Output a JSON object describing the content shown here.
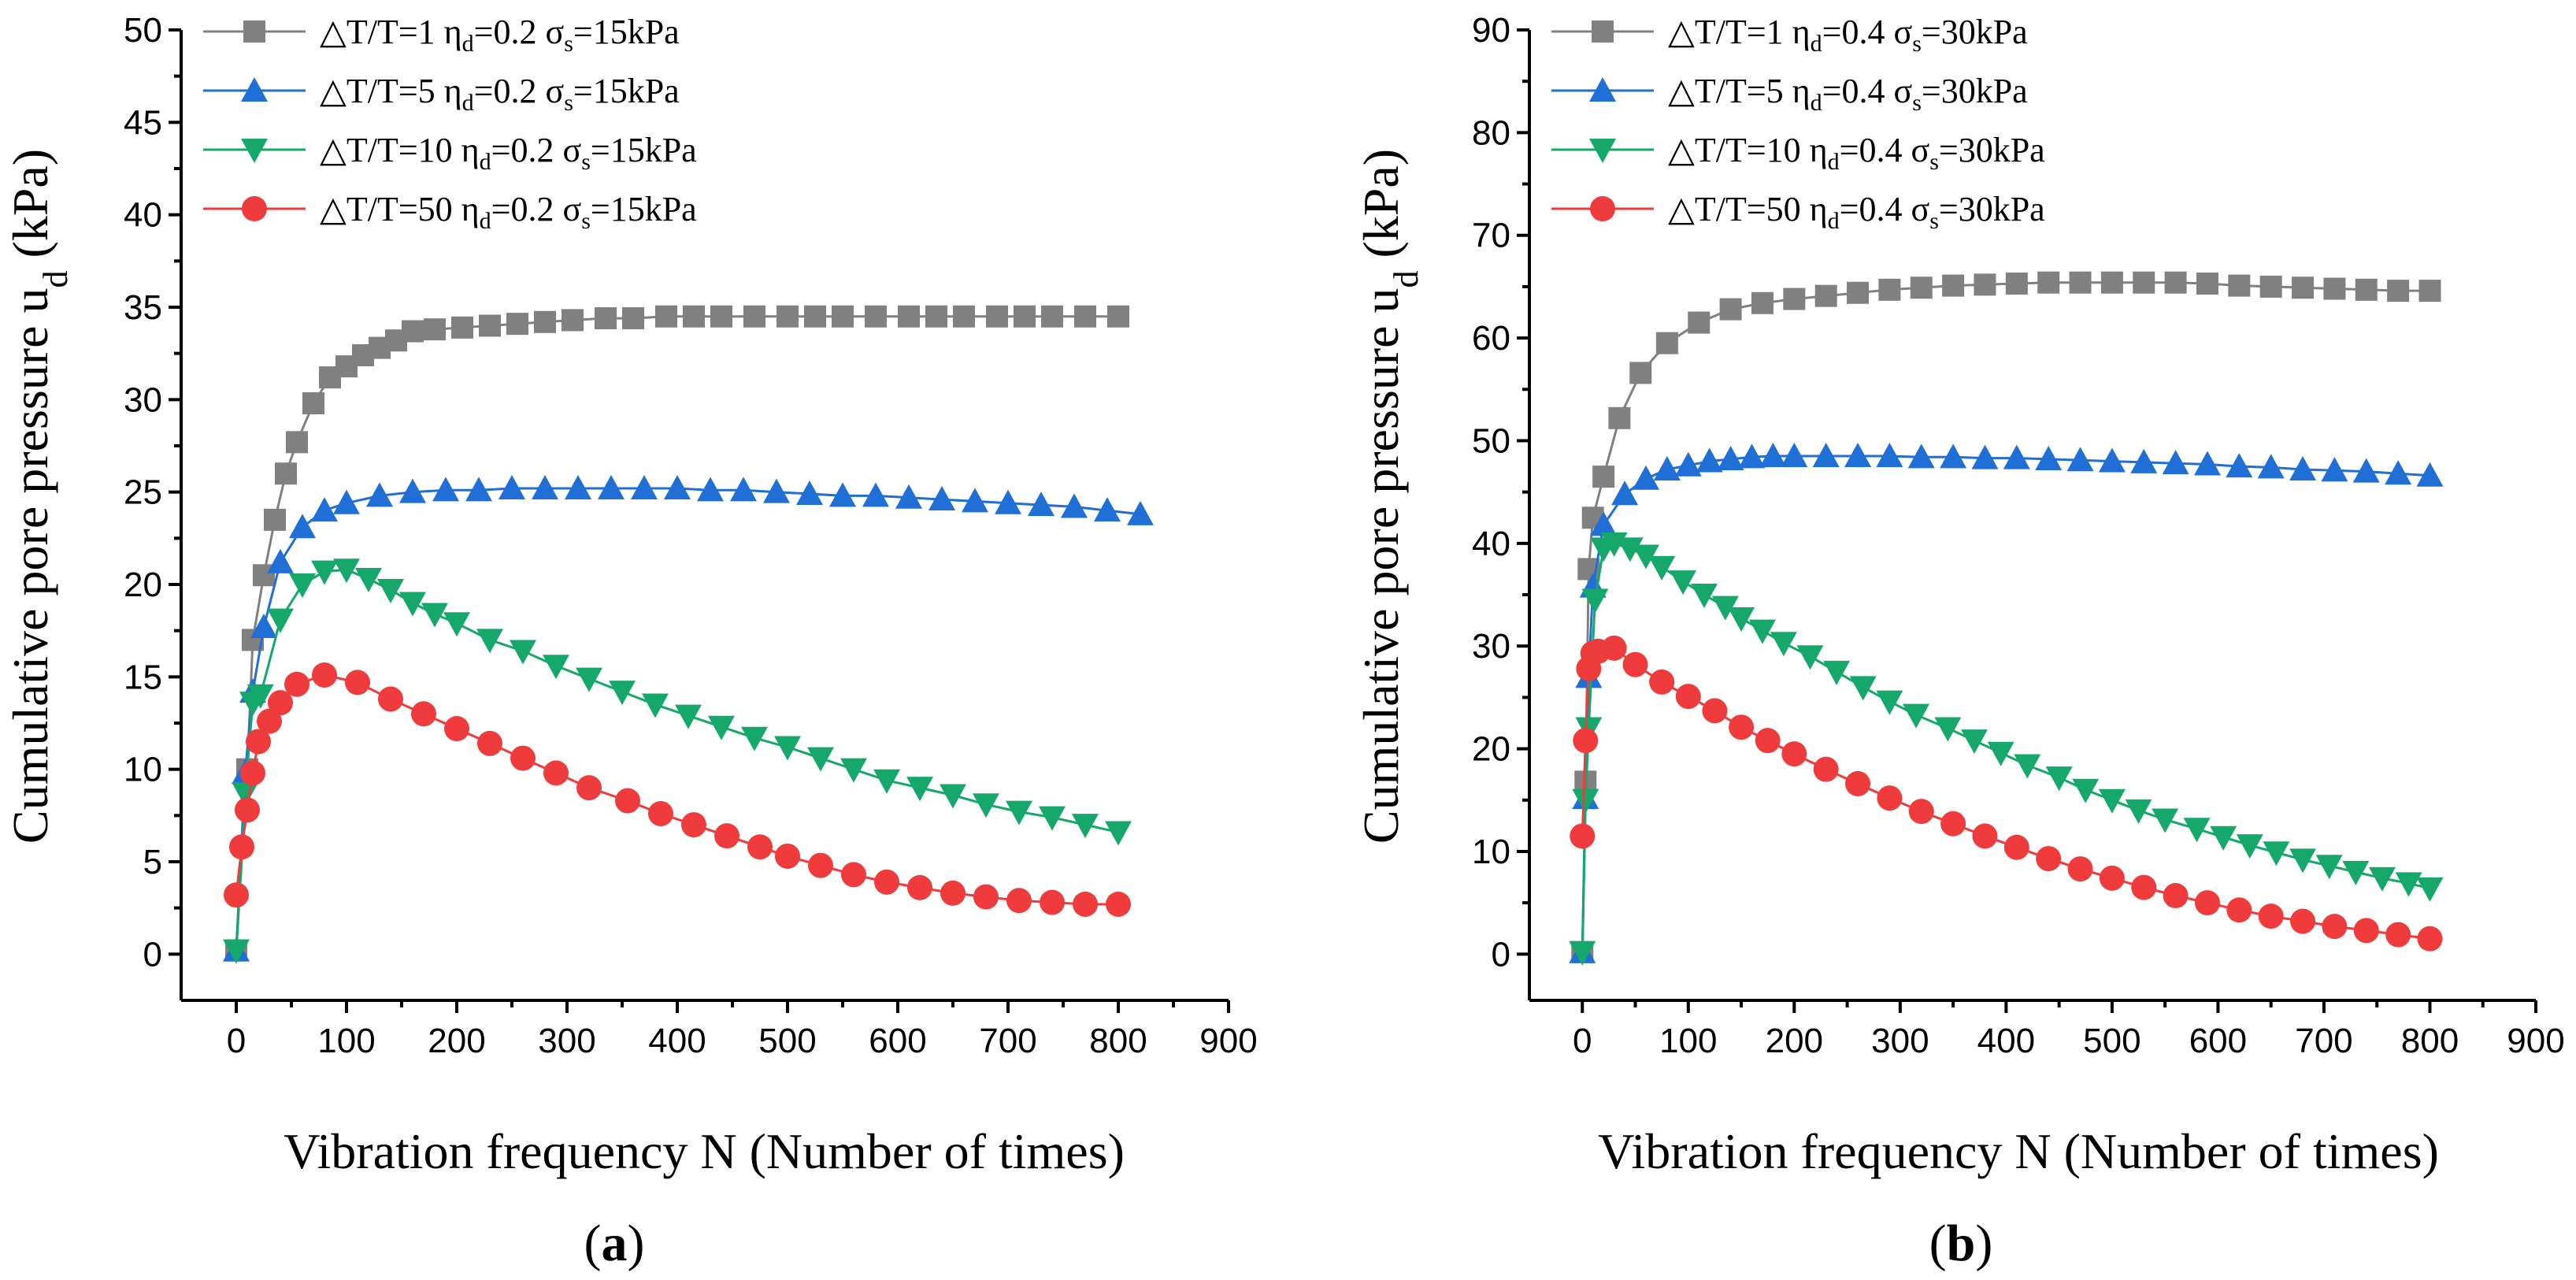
{
  "chart_data": [
    {
      "type": "line",
      "panel_label": "a",
      "xlabel": "Vibration frequency N (Number of times)",
      "ylabel": "Cumulative pore pressure u",
      "ylabel_subscript": "d",
      "ylabel_unit": " (kPa)",
      "xlim": [
        -50,
        900
      ],
      "ylim": [
        -2.5,
        50
      ],
      "xticks": [
        0,
        100,
        200,
        300,
        400,
        500,
        600,
        700,
        800,
        900
      ],
      "yticks": [
        0,
        5,
        10,
        15,
        20,
        25,
        30,
        35,
        40,
        45,
        50
      ],
      "legend_position": "top-left",
      "series": [
        {
          "name": "△T/T=1 η",
          "name_parts": {
            "lead": "△T/T=1 η",
            "sub1": "d",
            "mid": "=0.2 σ",
            "sub2": "s",
            "tail": "=15kPa"
          },
          "color": "#808080",
          "marker": "square",
          "x": [
            0,
            10,
            15,
            25,
            35,
            45,
            55,
            70,
            85,
            100,
            115,
            130,
            145,
            160,
            180,
            205,
            230,
            255,
            280,
            305,
            335,
            360,
            390,
            415,
            440,
            470,
            500,
            525,
            550,
            580,
            610,
            635,
            660,
            690,
            715,
            740,
            770,
            800
          ],
          "y": [
            0.2,
            10,
            17,
            20.5,
            23.5,
            26,
            27.7,
            29.8,
            31.2,
            31.8,
            32.4,
            32.8,
            33.2,
            33.7,
            33.8,
            33.9,
            34.0,
            34.1,
            34.2,
            34.3,
            34.4,
            34.4,
            34.5,
            34.5,
            34.5,
            34.5,
            34.5,
            34.5,
            34.5,
            34.5,
            34.5,
            34.5,
            34.5,
            34.5,
            34.5,
            34.5,
            34.5,
            34.5
          ]
        },
        {
          "name": "△T/T=5 η",
          "name_parts": {
            "lead": "△T/T=5 η",
            "sub1": "d",
            "mid": "=0.2 σ",
            "sub2": "s",
            "tail": "=15kPa"
          },
          "color": "#1f6fd6",
          "marker": "triangle-up",
          "x": [
            0,
            8,
            15,
            25,
            40,
            60,
            80,
            100,
            130,
            160,
            190,
            220,
            250,
            280,
            310,
            340,
            370,
            400,
            430,
            460,
            490,
            520,
            550,
            580,
            610,
            640,
            670,
            700,
            730,
            760,
            790,
            820
          ],
          "y": [
            0.2,
            9.8,
            14.2,
            17.7,
            21.2,
            23.1,
            24.0,
            24.4,
            24.8,
            25.0,
            25.1,
            25.1,
            25.2,
            25.2,
            25.2,
            25.2,
            25.2,
            25.2,
            25.1,
            25.1,
            25.0,
            24.9,
            24.8,
            24.8,
            24.7,
            24.6,
            24.5,
            24.4,
            24.3,
            24.2,
            24.0,
            23.8
          ]
        },
        {
          "name": "△T/T=10 η",
          "name_parts": {
            "lead": "△T/T=10 η",
            "sub1": "d",
            "mid": "=0.2 σ",
            "sub2": "s",
            "tail": "=15kPa"
          },
          "color": "#16a86b",
          "marker": "triangle-down",
          "x": [
            0,
            8,
            15,
            22,
            40,
            60,
            80,
            100,
            120,
            140,
            160,
            180,
            200,
            230,
            260,
            290,
            320,
            350,
            380,
            410,
            440,
            470,
            500,
            530,
            560,
            590,
            620,
            650,
            680,
            710,
            740,
            770,
            800
          ],
          "y": [
            0.2,
            8.7,
            13.6,
            14.0,
            18.1,
            20.0,
            20.7,
            20.8,
            20.3,
            19.7,
            19.0,
            18.4,
            17.9,
            17.0,
            16.4,
            15.6,
            14.9,
            14.2,
            13.5,
            12.9,
            12.3,
            11.7,
            11.2,
            10.6,
            10.0,
            9.4,
            9.0,
            8.6,
            8.1,
            7.7,
            7.4,
            7.0,
            6.6
          ]
        },
        {
          "name": "△T/T=50 η",
          "name_parts": {
            "lead": "△T/T=50 η",
            "sub1": "d",
            "mid": "=0.2 σ",
            "sub2": "s",
            "tail": "=15kPa"
          },
          "color": "#ef3b3b",
          "marker": "circle",
          "x": [
            0,
            5,
            10,
            15,
            20,
            30,
            40,
            55,
            80,
            110,
            140,
            170,
            200,
            230,
            260,
            290,
            320,
            355,
            385,
            415,
            445,
            475,
            500,
            530,
            560,
            590,
            620,
            650,
            680,
            710,
            740,
            770,
            800
          ],
          "y": [
            3.2,
            5.8,
            7.8,
            9.8,
            11.5,
            12.6,
            13.6,
            14.6,
            15.1,
            14.7,
            13.8,
            13.0,
            12.2,
            11.4,
            10.6,
            9.8,
            9.0,
            8.3,
            7.6,
            7.0,
            6.4,
            5.8,
            5.3,
            4.8,
            4.3,
            3.9,
            3.6,
            3.3,
            3.1,
            2.9,
            2.8,
            2.7,
            2.7
          ]
        }
      ]
    },
    {
      "type": "line",
      "panel_label": "b",
      "xlabel": "Vibration frequency N (Number of times)",
      "ylabel": "Cumulative pore pressure u",
      "ylabel_subscript": "d",
      "ylabel_unit": " (kPa)",
      "xlim": [
        -50,
        900
      ],
      "ylim": [
        -4.5,
        90
      ],
      "xticks": [
        0,
        100,
        200,
        300,
        400,
        500,
        600,
        700,
        800,
        900
      ],
      "yticks": [
        0,
        10,
        20,
        30,
        40,
        50,
        60,
        70,
        80,
        90
      ],
      "legend_position": "top-left",
      "series": [
        {
          "name": "△T/T=1 η",
          "name_parts": {
            "lead": "△T/T=1 η",
            "sub1": "d",
            "mid": "=0.4 σ",
            "sub2": "s",
            "tail": "=30kPa"
          },
          "color": "#808080",
          "marker": "square",
          "x": [
            0,
            3,
            6,
            10,
            20,
            35,
            55,
            80,
            110,
            140,
            170,
            200,
            230,
            260,
            290,
            320,
            350,
            380,
            410,
            440,
            470,
            500,
            530,
            560,
            590,
            620,
            650,
            680,
            710,
            740,
            770,
            800
          ],
          "y": [
            0.2,
            16.8,
            37.5,
            42.5,
            46.5,
            52.2,
            56.6,
            59.5,
            61.5,
            62.8,
            63.4,
            63.8,
            64.1,
            64.4,
            64.7,
            64.9,
            65.1,
            65.2,
            65.3,
            65.4,
            65.4,
            65.4,
            65.4,
            65.4,
            65.3,
            65.1,
            65.0,
            64.9,
            64.8,
            64.7,
            64.6,
            64.6
          ]
        },
        {
          "name": "△T/T=5 η",
          "name_parts": {
            "lead": "△T/T=5 η",
            "sub1": "d",
            "mid": "=0.4 σ",
            "sub2": "s",
            "tail": "=30kPa"
          },
          "color": "#1f6fd6",
          "marker": "triangle-up",
          "x": [
            0,
            3,
            6,
            10,
            20,
            40,
            60,
            80,
            100,
            120,
            140,
            160,
            180,
            200,
            230,
            260,
            290,
            320,
            350,
            380,
            410,
            440,
            470,
            500,
            530,
            560,
            590,
            620,
            650,
            680,
            710,
            740,
            770,
            800
          ],
          "y": [
            0.2,
            15.2,
            27.0,
            35.8,
            41.8,
            44.8,
            46.3,
            47.2,
            47.6,
            48.0,
            48.2,
            48.4,
            48.5,
            48.5,
            48.5,
            48.5,
            48.5,
            48.4,
            48.4,
            48.3,
            48.3,
            48.2,
            48.1,
            48.0,
            47.9,
            47.8,
            47.7,
            47.5,
            47.4,
            47.2,
            47.1,
            47.0,
            46.8,
            46.6
          ]
        },
        {
          "name": "△T/T=10 η",
          "name_parts": {
            "lead": "△T/T=10 η",
            "sub1": "d",
            "mid": "=0.4 σ",
            "sub2": "s",
            "tail": "=30kPa"
          },
          "color": "#16a86b",
          "marker": "triangle-down",
          "x": [
            0,
            3,
            6,
            12,
            20,
            30,
            45,
            60,
            75,
            95,
            115,
            135,
            150,
            170,
            190,
            215,
            240,
            265,
            290,
            315,
            345,
            370,
            395,
            420,
            450,
            475,
            500,
            525,
            550,
            580,
            605,
            630,
            655,
            680,
            705,
            730,
            755,
            780,
            800
          ],
          "y": [
            0.2,
            15.0,
            22.0,
            34.5,
            39.5,
            40.0,
            39.5,
            38.8,
            37.7,
            36.3,
            35.0,
            33.8,
            32.7,
            31.5,
            30.3,
            29.0,
            27.5,
            26.0,
            24.6,
            23.3,
            22.0,
            20.8,
            19.6,
            18.4,
            17.2,
            16.0,
            15.0,
            14.0,
            13.1,
            12.2,
            11.4,
            10.6,
            9.9,
            9.2,
            8.6,
            8.0,
            7.4,
            6.9,
            6.4
          ]
        },
        {
          "name": "△T/T=50 η",
          "name_parts": {
            "lead": "△T/T=50 η",
            "sub1": "d",
            "mid": "=0.4 σ",
            "sub2": "s",
            "tail": "=30kPa"
          },
          "color": "#ef3b3b",
          "marker": "circle",
          "x": [
            0,
            3,
            6,
            10,
            15,
            30,
            50,
            75,
            100,
            125,
            150,
            175,
            200,
            230,
            260,
            290,
            320,
            350,
            380,
            410,
            440,
            470,
            500,
            530,
            560,
            590,
            620,
            650,
            680,
            710,
            740,
            770,
            800
          ],
          "y": [
            11.5,
            20.8,
            27.8,
            29.3,
            29.5,
            29.8,
            28.2,
            26.5,
            25.1,
            23.7,
            22.1,
            20.8,
            19.5,
            18.0,
            16.6,
            15.2,
            13.9,
            12.7,
            11.5,
            10.4,
            9.3,
            8.3,
            7.4,
            6.5,
            5.7,
            5.0,
            4.3,
            3.7,
            3.2,
            2.7,
            2.3,
            1.9,
            1.5
          ]
        }
      ]
    }
  ]
}
